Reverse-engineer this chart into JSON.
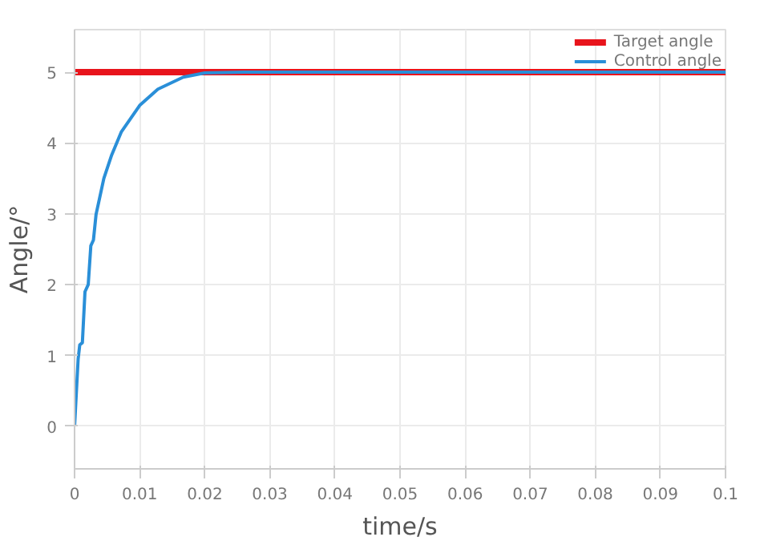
{
  "chart_data": {
    "type": "line",
    "xlabel": "time/s",
    "ylabel": "Angle/°",
    "xlim": [
      0,
      0.1
    ],
    "ylim": [
      -0.6,
      5.6
    ],
    "xticks": [
      0,
      0.01,
      0.02,
      0.03,
      0.04,
      0.05,
      0.06,
      0.07,
      0.08,
      0.09,
      0.1
    ],
    "yticks": [
      0,
      1,
      2,
      3,
      4,
      5
    ],
    "grid": true,
    "legend": "top right",
    "series": [
      {
        "name": "Target angle",
        "color": "#e8141c",
        "x": [
          0,
          0.1
        ],
        "values": [
          5,
          5
        ]
      },
      {
        "name": "Control angle",
        "color": "#2a8fd8",
        "x": [
          0,
          0.00055,
          0.0008,
          0.0012,
          0.0016,
          0.0021,
          0.0025,
          0.0029,
          0.0033,
          0.0045,
          0.0057,
          0.0072,
          0.01,
          0.0128,
          0.0167,
          0.02,
          0.026,
          0.1
        ],
        "values": [
          0,
          0.95,
          1.15,
          1.18,
          1.9,
          2.0,
          2.55,
          2.63,
          2.99,
          3.5,
          3.83,
          4.16,
          4.53,
          4.76,
          4.93,
          4.99,
          5,
          5
        ]
      }
    ]
  }
}
